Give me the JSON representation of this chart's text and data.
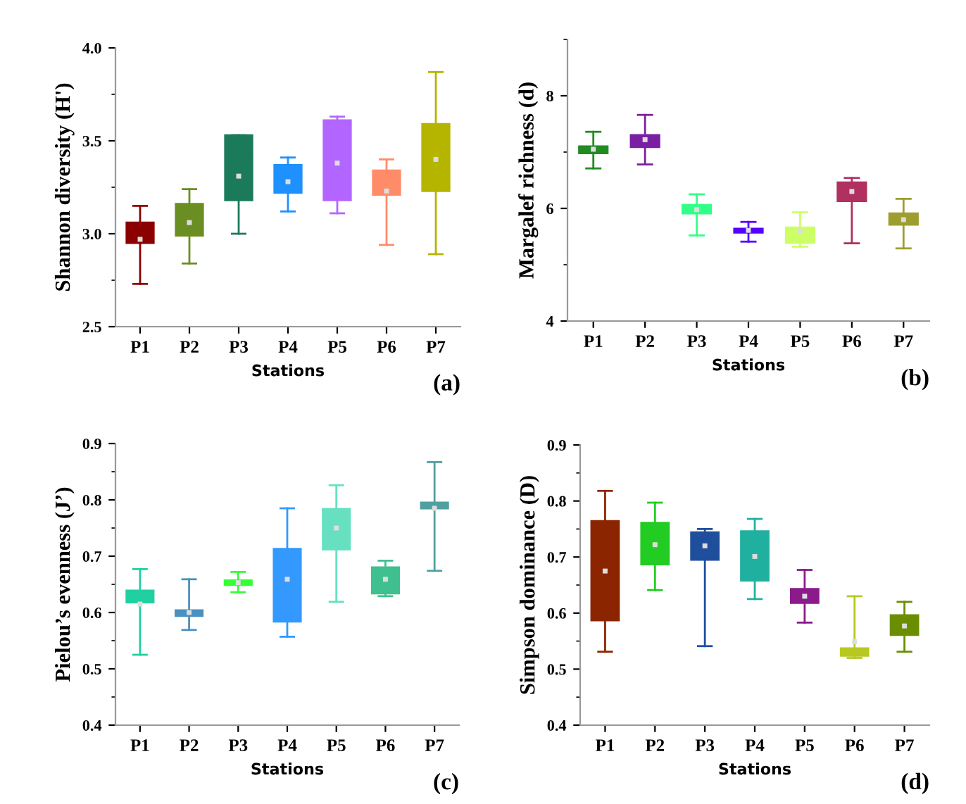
{
  "chart_data": [
    {
      "type": "box",
      "categories": [
        "P1",
        "P2",
        "P3",
        "P4",
        "P5",
        "P6",
        "P7"
      ],
      "xlabel": "Stations",
      "ylabel": "Shannon diversity (H')",
      "ylim": [
        2.5,
        4.0
      ],
      "yticks": [
        2.5,
        {
          "value": 3,
          "label": "3.0"
        },
        3.5,
        {
          "value": 4,
          "label": "4.0"
        }
      ],
      "annotations": [
        "(a)"
      ],
      "colors": [
        "#8b0000",
        "#6b8e23",
        "#1b7a5a",
        "#1e90ff",
        "#b266ff",
        "#ff8c69",
        "#b5b500"
      ],
      "boxes": [
        {
          "low": 2.73,
          "q1": 2.95,
          "median": 3.0,
          "q3": 3.06,
          "high": 3.15,
          "mean": 2.97
        },
        {
          "low": 2.84,
          "q1": 2.99,
          "median": 3.06,
          "q3": 3.16,
          "high": 3.24,
          "mean": 3.06
        },
        {
          "low": 3.0,
          "q1": 3.18,
          "median": 3.4,
          "q3": 3.53,
          "high": 3.53,
          "mean": 3.31
        },
        {
          "low": 3.12,
          "q1": 3.22,
          "median": 3.3,
          "q3": 3.37,
          "high": 3.41,
          "mean": 3.28
        },
        {
          "low": 3.11,
          "q1": 3.18,
          "median": 3.35,
          "q3": 3.61,
          "high": 3.63,
          "mean": 3.38
        },
        {
          "low": 2.94,
          "q1": 3.21,
          "median": 3.25,
          "q3": 3.34,
          "high": 3.4,
          "mean": 3.23
        },
        {
          "low": 2.89,
          "q1": 3.23,
          "median": 3.4,
          "q3": 3.59,
          "high": 3.87,
          "mean": 3.4
        }
      ]
    },
    {
      "type": "box",
      "categories": [
        "P1",
        "P2",
        "P3",
        "P4",
        "P5",
        "P6",
        "P7"
      ],
      "xlabel": "Stations",
      "ylabel": "Margalef richness (d)",
      "ylim": [
        4,
        9
      ],
      "yticks": [
        4,
        6,
        8
      ],
      "annotations": [
        "(b)"
      ],
      "colors": [
        "#228b22",
        "#7b1fa2",
        "#33ff88",
        "#5500ff",
        "#ccff66",
        "#b03060",
        "#9e9e30"
      ],
      "boxes": [
        {
          "low": 6.71,
          "q1": 6.98,
          "median": 7.05,
          "q3": 7.1,
          "high": 7.36,
          "mean": 7.05
        },
        {
          "low": 6.78,
          "q1": 7.09,
          "median": 7.2,
          "q3": 7.3,
          "high": 7.66,
          "mean": 7.22
        },
        {
          "low": 5.52,
          "q1": 5.91,
          "median": 5.98,
          "q3": 6.06,
          "high": 6.25,
          "mean": 5.98
        },
        {
          "low": 5.41,
          "q1": 5.57,
          "median": 5.61,
          "q3": 5.64,
          "high": 5.76,
          "mean": 5.61
        },
        {
          "low": 5.32,
          "q1": 5.39,
          "median": 5.55,
          "q3": 5.66,
          "high": 5.93,
          "mean": 5.6
        },
        {
          "low": 5.38,
          "q1": 6.13,
          "median": 6.3,
          "q3": 6.46,
          "high": 6.54,
          "mean": 6.3
        },
        {
          "low": 5.29,
          "q1": 5.71,
          "median": 5.8,
          "q3": 5.91,
          "high": 6.17,
          "mean": 5.8
        }
      ]
    },
    {
      "type": "box",
      "categories": [
        "P1",
        "P2",
        "P3",
        "P4",
        "P5",
        "P6",
        "P7"
      ],
      "xlabel": "Stations",
      "ylabel": "Pielou’s evenness (J’)",
      "ylim": [
        0.4,
        0.9
      ],
      "yticks": [
        0.4,
        0.5,
        0.6,
        0.7,
        0.8,
        0.9
      ],
      "annotations": [
        "(c)"
      ],
      "colors": [
        "#20d0a0",
        "#4a90c0",
        "#33ff33",
        "#3399ff",
        "#66e0c0",
        "#40c090",
        "#50a0a0"
      ],
      "boxes": [
        {
          "low": 0.525,
          "q1": 0.618,
          "median": 0.63,
          "q3": 0.639,
          "high": 0.677,
          "mean": 0.615
        },
        {
          "low": 0.569,
          "q1": 0.594,
          "median": 0.6,
          "q3": 0.604,
          "high": 0.659,
          "mean": 0.6
        },
        {
          "low": 0.636,
          "q1": 0.649,
          "median": 0.653,
          "q3": 0.657,
          "high": 0.672,
          "mean": 0.653
        },
        {
          "low": 0.557,
          "q1": 0.584,
          "median": 0.66,
          "q3": 0.713,
          "high": 0.785,
          "mean": 0.659
        },
        {
          "low": 0.619,
          "q1": 0.712,
          "median": 0.75,
          "q3": 0.784,
          "high": 0.826,
          "mean": 0.75
        },
        {
          "low": 0.629,
          "q1": 0.634,
          "median": 0.66,
          "q3": 0.68,
          "high": 0.692,
          "mean": 0.659
        },
        {
          "low": 0.674,
          "q1": 0.785,
          "median": 0.79,
          "q3": 0.795,
          "high": 0.867,
          "mean": 0.785
        }
      ]
    },
    {
      "type": "box",
      "categories": [
        "P1",
        "P2",
        "P3",
        "P4",
        "P5",
        "P6",
        "P7"
      ],
      "xlabel": "Stations",
      "ylabel": "Simpson dominance (D)",
      "ylim": [
        0.4,
        0.9
      ],
      "yticks": [
        0.4,
        0.5,
        0.6,
        0.7,
        0.8,
        0.9
      ],
      "annotations": [
        "(d)"
      ],
      "colors": [
        "#8b2500",
        "#22cc22",
        "#1f4e9c",
        "#20b0a0",
        "#8b1a8b",
        "#b8c820",
        "#6b8e00"
      ],
      "boxes": [
        {
          "low": 0.531,
          "q1": 0.587,
          "median": 0.676,
          "q3": 0.764,
          "high": 0.818,
          "mean": 0.675
        },
        {
          "low": 0.641,
          "q1": 0.687,
          "median": 0.722,
          "q3": 0.761,
          "high": 0.797,
          "mean": 0.722
        },
        {
          "low": 0.541,
          "q1": 0.695,
          "median": 0.72,
          "q3": 0.744,
          "high": 0.75,
          "mean": 0.72
        },
        {
          "low": 0.625,
          "q1": 0.658,
          "median": 0.701,
          "q3": 0.746,
          "high": 0.768,
          "mean": 0.701
        },
        {
          "low": 0.583,
          "q1": 0.618,
          "median": 0.63,
          "q3": 0.643,
          "high": 0.677,
          "mean": 0.63
        },
        {
          "low": 0.52,
          "q1": 0.524,
          "median": 0.53,
          "q3": 0.537,
          "high": 0.63,
          "mean": 0.549
        },
        {
          "low": 0.531,
          "q1": 0.561,
          "median": 0.577,
          "q3": 0.596,
          "high": 0.62,
          "mean": 0.577
        }
      ]
    }
  ]
}
